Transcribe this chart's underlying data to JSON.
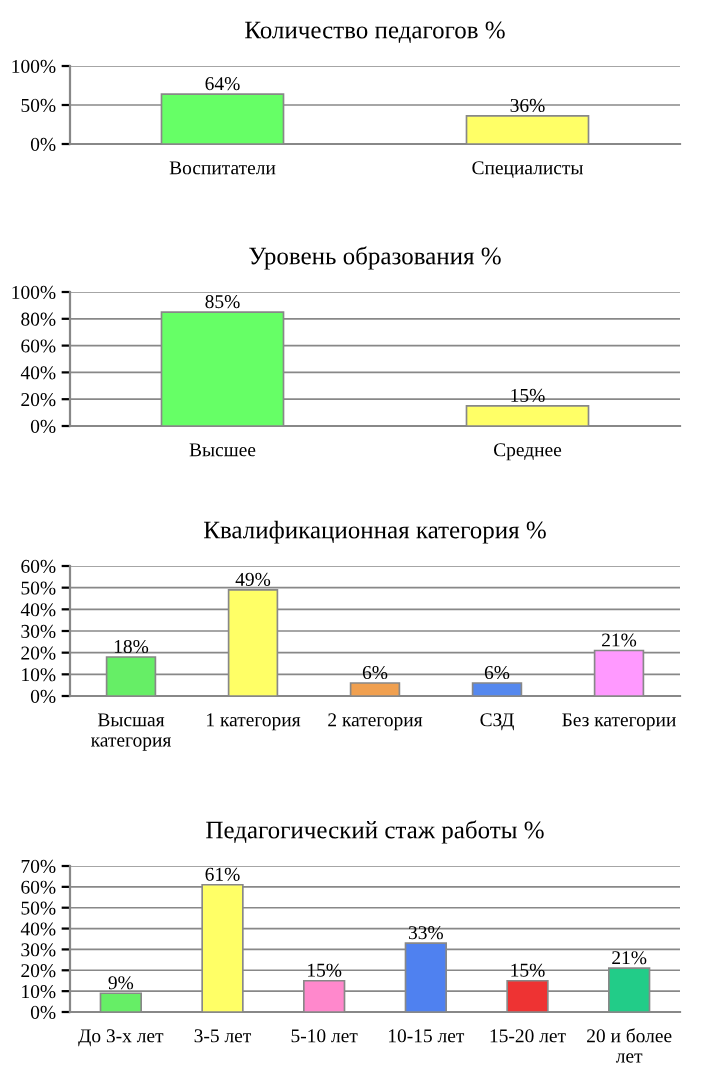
{
  "chart_data": [
    {
      "type": "bar",
      "title": "Количество педагогов %",
      "categories": [
        "Воспитатели",
        "Специалисты"
      ],
      "values": [
        64,
        36
      ],
      "colors": [
        "#66ff66",
        "#ffff66"
      ],
      "value_labels": [
        "64%",
        "36%"
      ],
      "ylim": [
        0,
        100
      ],
      "yticks": [
        {
          "value": 0,
          "label": "0%"
        },
        {
          "value": 50,
          "label": "50%"
        },
        {
          "value": 100,
          "label": "100%"
        }
      ],
      "grid": "y",
      "legend": false
    },
    {
      "type": "bar",
      "title": "Уровень образования %",
      "categories": [
        "Высшее",
        "Среднее"
      ],
      "values": [
        85,
        15
      ],
      "colors": [
        "#66ff66",
        "#ffff66"
      ],
      "value_labels": [
        "85%",
        "15%"
      ],
      "ylim": [
        0,
        100
      ],
      "yticks": [
        {
          "value": 0,
          "label": "0%"
        },
        {
          "value": 20,
          "label": "20%"
        },
        {
          "value": 40,
          "label": "40%"
        },
        {
          "value": 60,
          "label": "60%"
        },
        {
          "value": 80,
          "label": "80%"
        },
        {
          "value": 100,
          "label": "100%"
        }
      ],
      "grid": "y",
      "legend": false
    },
    {
      "type": "bar",
      "title": "Квалификационная категория %",
      "categories": [
        "Высшая категория",
        "1 категория",
        "2 категория",
        "СЗД",
        "Без категории"
      ],
      "values": [
        18,
        49,
        6,
        6,
        21
      ],
      "colors": [
        "#66ee66",
        "#ffff66",
        "#f0a050",
        "#5588ee",
        "#ff99ff"
      ],
      "value_labels": [
        "18%",
        "49%",
        "6%",
        "6%",
        "21%"
      ],
      "ylim": [
        0,
        60
      ],
      "yticks": [
        {
          "value": 0,
          "label": "0%"
        },
        {
          "value": 10,
          "label": "10%"
        },
        {
          "value": 20,
          "label": "20%"
        },
        {
          "value": 30,
          "label": "30%"
        },
        {
          "value": 40,
          "label": "40%"
        },
        {
          "value": 50,
          "label": "50%"
        },
        {
          "value": 60,
          "label": "60%"
        }
      ],
      "grid": "y",
      "legend": false
    },
    {
      "type": "bar",
      "title": "Педагогический стаж работы %",
      "categories": [
        "До 3-х лет",
        "3-5 лет",
        "5-10 лет",
        "10-15 лет",
        "15-20 лет",
        "20 и более лет"
      ],
      "values": [
        9,
        61,
        15,
        33,
        15,
        21
      ],
      "colors": [
        "#66ee66",
        "#ffff66",
        "#ff88cc",
        "#4f81f0",
        "#ee3333",
        "#22cc88"
      ],
      "value_labels": [
        "9%",
        "61%",
        "15%",
        "33%",
        "15%",
        "21%"
      ],
      "ylim": [
        0,
        70
      ],
      "yticks": [
        {
          "value": 0,
          "label": "0%"
        },
        {
          "value": 10,
          "label": "10%"
        },
        {
          "value": 20,
          "label": "20%"
        },
        {
          "value": 30,
          "label": "30%"
        },
        {
          "value": 40,
          "label": "40%"
        },
        {
          "value": 50,
          "label": "50%"
        },
        {
          "value": 60,
          "label": "60%"
        },
        {
          "value": 70,
          "label": "70%"
        }
      ],
      "grid": "y",
      "legend": false
    }
  ]
}
